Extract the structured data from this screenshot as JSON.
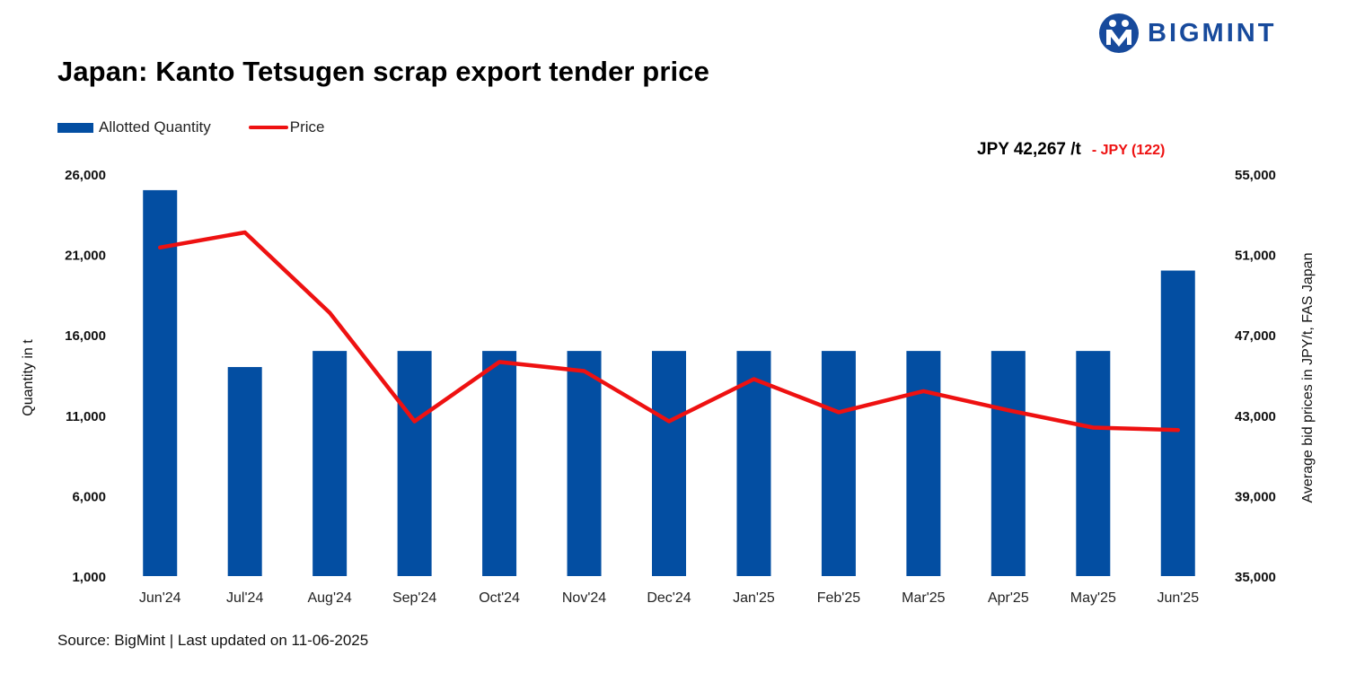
{
  "header": {
    "title": "Japan: Kanto Tetsugen scrap export tender price",
    "brand": "BIGMINT"
  },
  "latest": {
    "price_label": "JPY 42,267 /t",
    "change_label": "- JPY (122)"
  },
  "footer": {
    "source": "Source: BigMint | Last updated on 11-06-2025"
  },
  "colors": {
    "bar": "#034ea2",
    "line": "#ee1111",
    "brand": "#174a9c"
  },
  "chart_data": {
    "type": "bar",
    "title": "Japan: Kanto Tetsugen scrap export tender price",
    "categories": [
      "Jun'24",
      "Jul'24",
      "Aug'24",
      "Sep'24",
      "Oct'24",
      "Nov'24",
      "Dec'24",
      "Jan'25",
      "Feb'25",
      "Mar'25",
      "Apr'25",
      "May'25",
      "Jun'25"
    ],
    "series": [
      {
        "name": "Allotted Quantity",
        "kind": "bar",
        "axis": "left",
        "values": [
          25000,
          14000,
          15000,
          15000,
          15000,
          15000,
          15000,
          15000,
          15000,
          15000,
          15000,
          15000,
          20000
        ]
      },
      {
        "name": "Price",
        "kind": "line",
        "axis": "right",
        "values": [
          51350,
          52100,
          48100,
          42700,
          45650,
          45200,
          42700,
          44800,
          43150,
          44200,
          43250,
          42389,
          42267
        ]
      }
    ],
    "ylabel_left": "Quantity in t",
    "ylabel_right": "Average bid prices in JPY/t, FAS Japan",
    "ylim_left": [
      1000,
      26000
    ],
    "yticks_left": [
      "1,000",
      "6,000",
      "11,000",
      "16,000",
      "21,000",
      "26,000"
    ],
    "ylim_right": [
      35000,
      55000
    ],
    "yticks_right": [
      "35,000",
      "39,000",
      "43,000",
      "47,000",
      "51,000",
      "55,000"
    ],
    "legend_position": "top-left",
    "grid": false
  }
}
